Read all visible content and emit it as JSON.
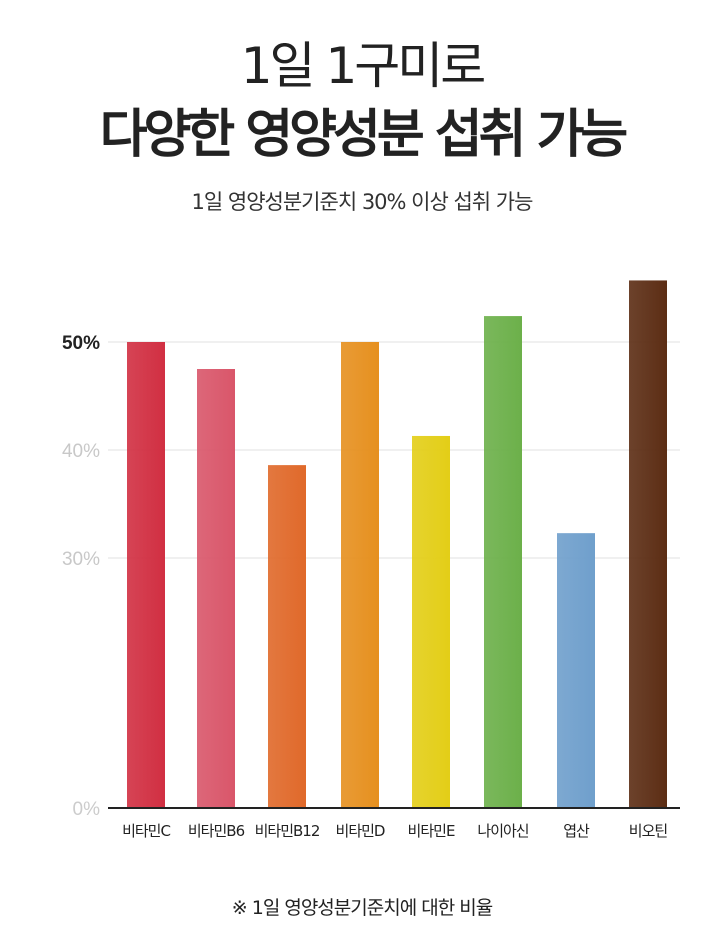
{
  "header": {
    "title_line1": "1일 1구미로",
    "title_line2": "다양한 영양성분 섭취 가능",
    "subtitle": "1일 영양성분기준치 30% 이상 섭취 가능"
  },
  "footnote": "※ 1일 영양성분기준치에 대한 비율",
  "chart_data": {
    "type": "bar",
    "title": "",
    "xlabel": "",
    "ylabel": "",
    "categories": [
      "비타민C",
      "비타민B6",
      "비타민B12",
      "비타민D",
      "비타민E",
      "나이아신",
      "엽산",
      "비오틴"
    ],
    "values": [
      50,
      47.5,
      38.6,
      50,
      41.3,
      52.4,
      32.3,
      55.7
    ],
    "colors": [
      "#d12f42",
      "#d9566a",
      "#e0692a",
      "#e6901f",
      "#e3ce17",
      "#6cb04a",
      "#6f9fcc",
      "#5c2d14"
    ],
    "yticks": [
      {
        "value": 0,
        "label": "0%",
        "color": "#cccccc"
      },
      {
        "value": 30,
        "label": "30%",
        "color": "#c8c8c8"
      },
      {
        "value": 40,
        "label": "40%",
        "color": "#c8c8c8"
      },
      {
        "value": 50,
        "label": "50%",
        "color": "#222222"
      }
    ],
    "axis_break": "between 0% and 30%",
    "ylim": [
      0,
      57
    ],
    "grid": true,
    "legend": "none"
  }
}
